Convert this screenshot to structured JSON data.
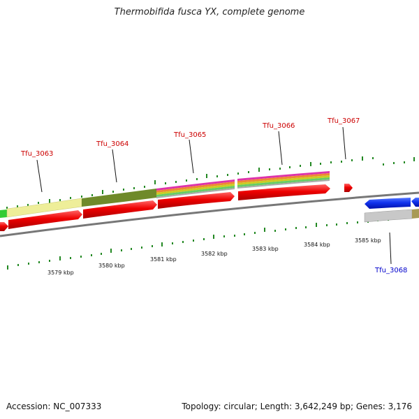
{
  "title": "Thermobifida fusca YX, complete genome",
  "footer": {
    "accession": "Accession: NC_007333",
    "stats": "Topology: circular; Length: 3,642,249 bp; Genes: 3,176"
  },
  "colors": {
    "forward_cds": "#ee1111",
    "reverse_cds": "#1133dd",
    "backbone": "#888888",
    "ticks": "#228822",
    "fwd_label": "#cc0000",
    "rev_label": "#0000cc"
  },
  "kbp_labels": [
    "3579 kbp",
    "3580 kbp",
    "3581 kbp",
    "3582 kbp",
    "3583 kbp",
    "3584 kbp",
    "3585 kbp"
  ],
  "genes": [
    {
      "label": "Tfu_3063",
      "strand": "forward"
    },
    {
      "label": "Tfu_3064",
      "strand": "forward"
    },
    {
      "label": "Tfu_3065",
      "strand": "forward"
    },
    {
      "label": "Tfu_3066",
      "strand": "forward"
    },
    {
      "label": "Tfu_3067",
      "strand": "forward"
    },
    {
      "label": "Tfu_3068",
      "strand": "reverse"
    }
  ]
}
